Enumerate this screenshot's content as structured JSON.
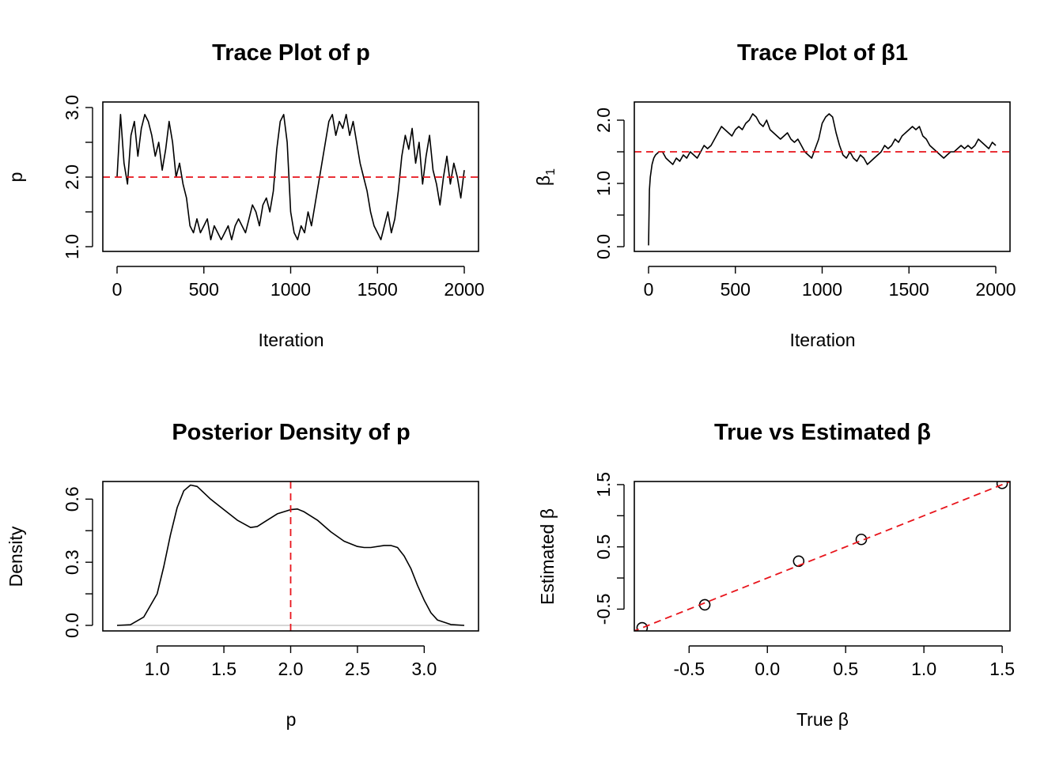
{
  "colors": {
    "line": "#000000",
    "reference": "#e8141b",
    "zero_line": "#bebebe",
    "background": "#ffffff"
  },
  "chart_data": [
    {
      "type": "line",
      "title": "Trace Plot of p",
      "xlabel": "Iteration",
      "ylabel": "p",
      "xlim": [
        0,
        2000
      ],
      "ylim": [
        1.0,
        3.0
      ],
      "xticks": [
        "0",
        "500",
        "1000",
        "1500",
        "2000"
      ],
      "yticks": [
        "1.0",
        "2.0",
        "3.0"
      ],
      "reference_line": {
        "orientation": "horizontal",
        "value": 2.0,
        "style": "dashed",
        "color": "red"
      },
      "series": [
        {
          "x": [
            0,
            20,
            40,
            60,
            80,
            100,
            120,
            140,
            160,
            180,
            200,
            220,
            240,
            260,
            280,
            300,
            320,
            340,
            360,
            380,
            400,
            420,
            440,
            460,
            480,
            500,
            520,
            540,
            560,
            580,
            600,
            620,
            640,
            660,
            680,
            700,
            720,
            740,
            760,
            780,
            800,
            820,
            840,
            860,
            880,
            900,
            920,
            940,
            960,
            980,
            1000,
            1020,
            1040,
            1060,
            1080,
            1100,
            1120,
            1140,
            1160,
            1180,
            1200,
            1220,
            1240,
            1260,
            1280,
            1300,
            1320,
            1340,
            1360,
            1380,
            1400,
            1420,
            1440,
            1460,
            1480,
            1500,
            1520,
            1540,
            1560,
            1580,
            1600,
            1620,
            1640,
            1660,
            1680,
            1700,
            1720,
            1740,
            1760,
            1780,
            1800,
            1820,
            1840,
            1860,
            1880,
            1900,
            1920,
            1940,
            1960,
            1980,
            2000
          ],
          "values": [
            2.0,
            2.9,
            2.2,
            1.9,
            2.6,
            2.8,
            2.3,
            2.7,
            2.9,
            2.8,
            2.6,
            2.3,
            2.5,
            2.1,
            2.4,
            2.8,
            2.5,
            2.0,
            2.2,
            1.9,
            1.7,
            1.3,
            1.2,
            1.4,
            1.2,
            1.3,
            1.4,
            1.1,
            1.3,
            1.2,
            1.1,
            1.2,
            1.3,
            1.1,
            1.3,
            1.4,
            1.3,
            1.2,
            1.4,
            1.6,
            1.5,
            1.3,
            1.6,
            1.7,
            1.5,
            1.8,
            2.4,
            2.8,
            2.9,
            2.5,
            1.5,
            1.2,
            1.1,
            1.3,
            1.2,
            1.5,
            1.3,
            1.6,
            1.9,
            2.2,
            2.5,
            2.8,
            2.9,
            2.6,
            2.8,
            2.7,
            2.9,
            2.6,
            2.8,
            2.5,
            2.2,
            2.0,
            1.8,
            1.5,
            1.3,
            1.2,
            1.1,
            1.3,
            1.5,
            1.2,
            1.4,
            1.8,
            2.3,
            2.6,
            2.4,
            2.7,
            2.2,
            2.5,
            1.9,
            2.3,
            2.6,
            2.1,
            1.9,
            1.6,
            2.0,
            2.3,
            1.9,
            2.2,
            2.0,
            1.7,
            2.1
          ]
        }
      ]
    },
    {
      "type": "line",
      "title": "Trace Plot of β1",
      "xlabel": "Iteration",
      "ylabel": "β",
      "ylabel_subscript": "1",
      "xlim": [
        0,
        2000
      ],
      "ylim": [
        0.0,
        2.0
      ],
      "xticks": [
        "0",
        "500",
        "1000",
        "1500",
        "2000"
      ],
      "yticks": [
        "0.0",
        "1.0",
        "2.0"
      ],
      "reference_line": {
        "orientation": "horizontal",
        "value": 1.5,
        "style": "dashed",
        "color": "red"
      },
      "series": [
        {
          "x": [
            0,
            5,
            10,
            20,
            30,
            40,
            60,
            80,
            100,
            120,
            140,
            160,
            180,
            200,
            220,
            240,
            260,
            280,
            300,
            320,
            340,
            360,
            380,
            400,
            420,
            440,
            460,
            480,
            500,
            520,
            540,
            560,
            580,
            600,
            620,
            640,
            660,
            680,
            700,
            720,
            740,
            760,
            780,
            800,
            820,
            840,
            860,
            880,
            900,
            920,
            940,
            960,
            980,
            1000,
            1020,
            1040,
            1060,
            1080,
            1100,
            1120,
            1140,
            1160,
            1180,
            1200,
            1220,
            1240,
            1260,
            1280,
            1300,
            1320,
            1340,
            1360,
            1380,
            1400,
            1420,
            1440,
            1460,
            1480,
            1500,
            1520,
            1540,
            1560,
            1580,
            1600,
            1620,
            1640,
            1660,
            1680,
            1700,
            1720,
            1740,
            1760,
            1780,
            1800,
            1820,
            1840,
            1860,
            1880,
            1900,
            1920,
            1940,
            1960,
            1980,
            2000
          ],
          "values": [
            0.02,
            0.9,
            1.1,
            1.3,
            1.4,
            1.45,
            1.5,
            1.5,
            1.4,
            1.35,
            1.3,
            1.4,
            1.35,
            1.45,
            1.4,
            1.5,
            1.45,
            1.4,
            1.5,
            1.6,
            1.55,
            1.6,
            1.7,
            1.8,
            1.9,
            1.85,
            1.8,
            1.75,
            1.85,
            1.9,
            1.85,
            1.95,
            2.0,
            2.1,
            2.05,
            1.95,
            1.9,
            2.0,
            1.85,
            1.8,
            1.75,
            1.7,
            1.75,
            1.8,
            1.7,
            1.65,
            1.7,
            1.6,
            1.5,
            1.45,
            1.4,
            1.55,
            1.7,
            1.95,
            2.05,
            2.1,
            2.05,
            1.8,
            1.6,
            1.45,
            1.4,
            1.5,
            1.4,
            1.35,
            1.45,
            1.4,
            1.3,
            1.35,
            1.4,
            1.45,
            1.5,
            1.6,
            1.55,
            1.6,
            1.7,
            1.65,
            1.75,
            1.8,
            1.85,
            1.9,
            1.85,
            1.9,
            1.75,
            1.7,
            1.6,
            1.55,
            1.5,
            1.45,
            1.4,
            1.45,
            1.5,
            1.5,
            1.55,
            1.6,
            1.55,
            1.6,
            1.55,
            1.6,
            1.7,
            1.65,
            1.6,
            1.55,
            1.65,
            1.6
          ]
        }
      ]
    },
    {
      "type": "line",
      "title": "Posterior Density of p",
      "xlabel": "p",
      "ylabel": "Density",
      "xlim": [
        0.7,
        3.3
      ],
      "ylim": [
        0.0,
        0.65
      ],
      "xticks": [
        "1.0",
        "1.5",
        "2.0",
        "2.5",
        "3.0"
      ],
      "yticks": [
        "0.0",
        "0.3",
        "0.6"
      ],
      "reference_line": {
        "orientation": "vertical",
        "value": 2.0,
        "style": "dashed",
        "color": "red"
      },
      "series": [
        {
          "x": [
            0.7,
            0.8,
            0.9,
            1.0,
            1.05,
            1.1,
            1.15,
            1.2,
            1.25,
            1.3,
            1.35,
            1.4,
            1.5,
            1.6,
            1.7,
            1.75,
            1.8,
            1.9,
            2.0,
            2.05,
            2.1,
            2.2,
            2.3,
            2.4,
            2.5,
            2.55,
            2.6,
            2.7,
            2.75,
            2.8,
            2.85,
            2.9,
            2.95,
            3.0,
            3.05,
            3.1,
            3.2,
            3.3
          ],
          "values": [
            0.0,
            0.003,
            0.04,
            0.15,
            0.28,
            0.43,
            0.56,
            0.64,
            0.667,
            0.66,
            0.63,
            0.6,
            0.55,
            0.5,
            0.465,
            0.47,
            0.49,
            0.53,
            0.55,
            0.553,
            0.54,
            0.5,
            0.445,
            0.4,
            0.375,
            0.37,
            0.37,
            0.38,
            0.38,
            0.37,
            0.33,
            0.27,
            0.19,
            0.12,
            0.06,
            0.025,
            0.004,
            0.0
          ]
        }
      ]
    },
    {
      "type": "scatter",
      "title": "True vs Estimated β",
      "xlabel": "True β",
      "ylabel": "Estimated β",
      "xlim": [
        -0.85,
        1.55
      ],
      "ylim": [
        -0.85,
        1.55
      ],
      "xticks": [
        "-0.5",
        "0.0",
        "0.5",
        "1.0",
        "1.5"
      ],
      "yticks": [
        "-0.5",
        "0.5",
        "1.5"
      ],
      "reference_line": {
        "orientation": "diagonal",
        "slope": 1,
        "intercept": 0,
        "style": "dashed",
        "color": "red"
      },
      "series": [
        {
          "x": [
            -0.8,
            -0.4,
            0.2,
            0.6,
            1.5
          ],
          "values": [
            -0.8,
            -0.43,
            0.27,
            0.62,
            1.52
          ]
        }
      ]
    }
  ]
}
